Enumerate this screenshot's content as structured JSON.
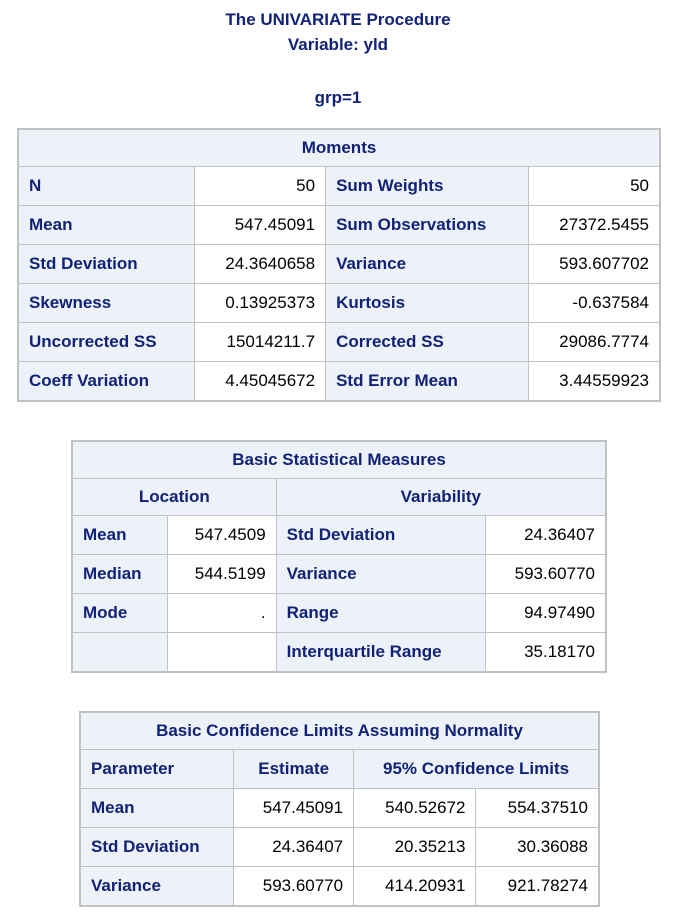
{
  "header": {
    "title": "The UNIVARIATE Procedure",
    "variable": "Variable: yld",
    "group": "grp=1"
  },
  "moments": {
    "caption": "Moments",
    "rows": [
      {
        "l1": "N",
        "v1": "50",
        "l2": "Sum Weights",
        "v2": "50"
      },
      {
        "l1": "Mean",
        "v1": "547.45091",
        "l2": "Sum Observations",
        "v2": "27372.5455"
      },
      {
        "l1": "Std Deviation",
        "v1": "24.3640658",
        "l2": "Variance",
        "v2": "593.607702"
      },
      {
        "l1": "Skewness",
        "v1": "0.13925373",
        "l2": "Kurtosis",
        "v2": "-0.637584"
      },
      {
        "l1": "Uncorrected SS",
        "v1": "15014211.7",
        "l2": "Corrected SS",
        "v2": "29086.7774"
      },
      {
        "l1": "Coeff Variation",
        "v1": "4.45045672",
        "l2": "Std Error Mean",
        "v2": "3.44559923"
      }
    ]
  },
  "basic": {
    "caption": "Basic Statistical Measures",
    "location_header": "Location",
    "variability_header": "Variability",
    "rows": [
      {
        "l1": "Mean",
        "v1": "547.4509",
        "l2": "Std Deviation",
        "v2": "24.36407"
      },
      {
        "l1": "Median",
        "v1": "544.5199",
        "l2": "Variance",
        "v2": "593.60770"
      },
      {
        "l1": "Mode",
        "v1": ".",
        "l2": "Range",
        "v2": "94.97490"
      },
      {
        "l1": "",
        "v1": "",
        "l2": "Interquartile Range",
        "v2": "35.18170"
      }
    ]
  },
  "confidence": {
    "caption": "Basic Confidence Limits Assuming Normality",
    "headers": {
      "parameter": "Parameter",
      "estimate": "Estimate",
      "limits": "95% Confidence Limits"
    },
    "rows": [
      {
        "param": "Mean",
        "est": "547.45091",
        "lo": "540.52672",
        "hi": "554.37510"
      },
      {
        "param": "Std Deviation",
        "est": "24.36407",
        "lo": "20.35213",
        "hi": "30.36088"
      },
      {
        "param": "Variance",
        "est": "593.60770",
        "lo": "414.20931",
        "hi": "921.78274"
      }
    ]
  }
}
